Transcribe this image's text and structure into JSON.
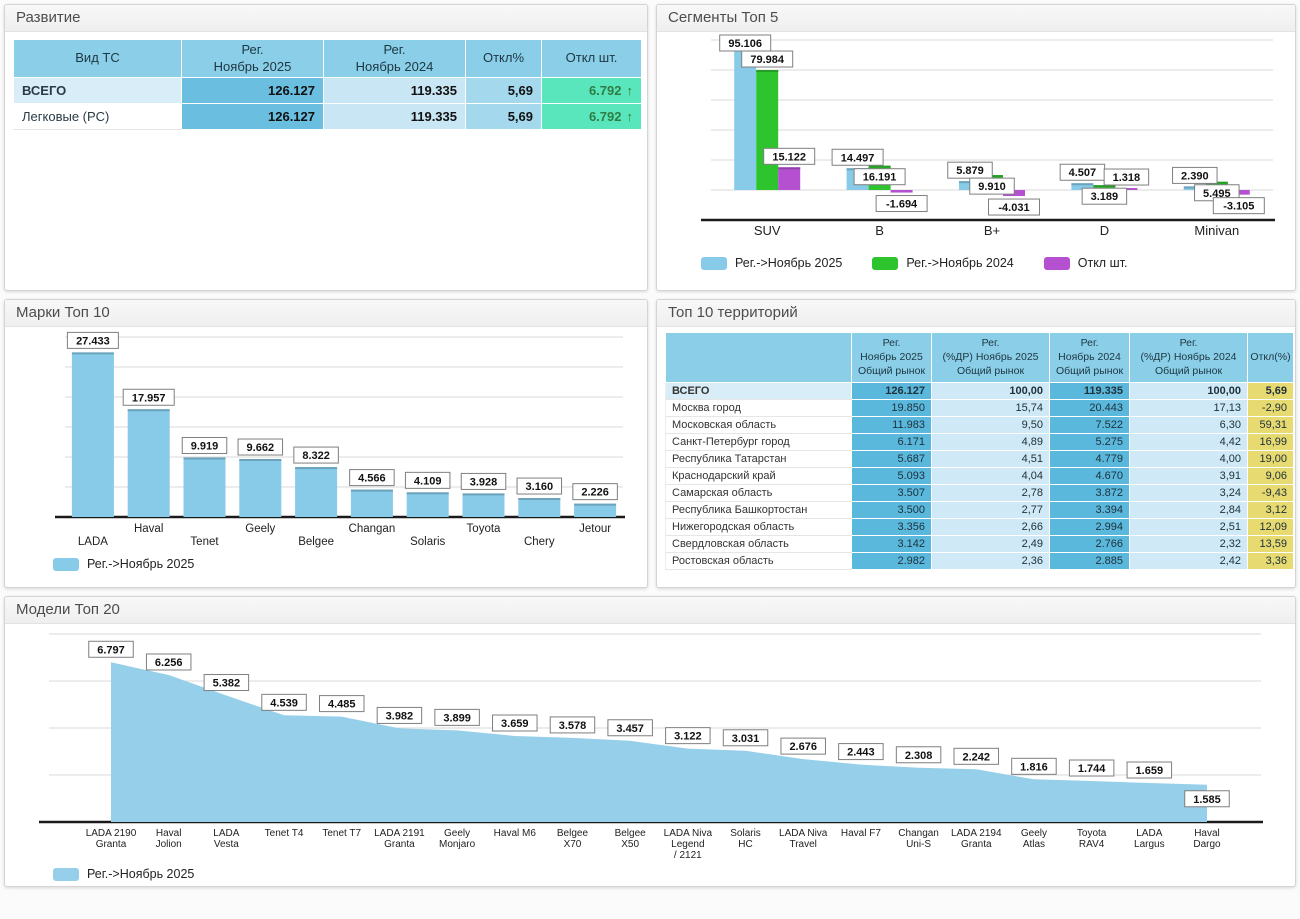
{
  "colors": {
    "blue": "#87cbe8",
    "area_blue": "#96cfe9",
    "green": "#2ec42e",
    "purple": "#b551d1",
    "grid": "#d8d8d8",
    "axis": "#1a1a1a",
    "label_box_border": "#7f7f7f",
    "header_blue": "#8bcee8",
    "cell_mid_blue": "#5bb8dd",
    "cell_light_blue": "#cfe9f6",
    "cell_yellow": "#e6da70",
    "cell_mint": "#59e6bc"
  },
  "icons": {
    "trend_up": "↑"
  },
  "panels": {
    "development": {
      "title": "Развитие"
    },
    "segments": {
      "title": "Сегменты Топ 5"
    },
    "brands": {
      "title": "Марки Топ 10"
    },
    "territories": {
      "title": "Топ 10 территорий"
    },
    "models": {
      "title": "Модели Топ 20"
    }
  },
  "chart_data": [
    {
      "id": "development",
      "type": "table",
      "columns": [
        "Вид ТС",
        "Рег.\nНоябрь 2025",
        "Рег.\nНоябрь 2024",
        "Откл%",
        "Откл шт."
      ],
      "rows": [
        {
          "cells": [
            "ВСЕГО",
            "126.127",
            "119.335",
            "5,69",
            "6.792"
          ],
          "trend": "up"
        },
        {
          "cells": [
            "Легковые (PC)",
            "126.127",
            "119.335",
            "5,69",
            "6.792"
          ],
          "trend": "up"
        }
      ]
    },
    {
      "id": "segments",
      "type": "bar",
      "title": "Сегменты Топ 5",
      "categories": [
        "SUV",
        "B",
        "B+",
        "D",
        "Minivan"
      ],
      "series": [
        {
          "name": "Рег.->Ноябрь 2025",
          "color_key": "blue",
          "values": [
            95106,
            14497,
            5879,
            4507,
            2390
          ],
          "labels": [
            "95.106",
            "14.497",
            "5.879",
            "4.507",
            "2.390"
          ]
        },
        {
          "name": "Рег.->Ноябрь 2024",
          "color_key": "green",
          "values": [
            79984,
            16191,
            9910,
            3189,
            5495
          ],
          "labels": [
            "79.984",
            "16.191",
            "9.910",
            "3.189",
            "5.495"
          ]
        },
        {
          "name": "Откл шт.",
          "color_key": "purple",
          "values": [
            15122,
            -1694,
            -4031,
            1318,
            -3105
          ],
          "labels": [
            "15.122",
            "-1.694",
            "-4.031",
            "1.318",
            "-3.105"
          ]
        }
      ],
      "ylim": [
        -20000,
        100000
      ],
      "grid_step": 20000,
      "grid": true,
      "legend_position": "bottom"
    },
    {
      "id": "brands",
      "type": "bar",
      "title": "Марки Топ 10",
      "categories": [
        "LADA",
        "Haval",
        "Tenet",
        "Geely",
        "Belgee",
        "Changan",
        "Solaris",
        "Toyota",
        "Chery",
        "Jetour"
      ],
      "series": [
        {
          "name": "Рег.->Ноябрь 2025",
          "color_key": "blue",
          "values": [
            27433,
            17957,
            9919,
            9662,
            8322,
            4566,
            4109,
            3928,
            3160,
            2226
          ],
          "labels": [
            "27.433",
            "17.957",
            "9.919",
            "9.662",
            "8.322",
            "4.566",
            "4.109",
            "3.928",
            "3.160",
            "2.226"
          ]
        }
      ],
      "ylim": [
        0,
        30000
      ],
      "grid_step": 5000,
      "grid": true,
      "legend_position": "bottom"
    },
    {
      "id": "territories",
      "type": "table",
      "columns": [
        "",
        "Рег.\nНоябрь 2025\nОбщий рынок",
        "Рег.\n(%ДР) Ноябрь 2025\nОбщий рынок",
        "Рег.\nНоябрь 2024\nОбщий рынок",
        "Рег.\n(%ДР) Ноябрь 2024\nОбщий рынок",
        "Откл(%)"
      ],
      "rows": [
        [
          "ВСЕГО",
          "126.127",
          "100,00",
          "119.335",
          "100,00",
          "5,69"
        ],
        [
          "Москва город",
          "19.850",
          "15,74",
          "20.443",
          "17,13",
          "-2,90"
        ],
        [
          "Московская область",
          "11.983",
          "9,50",
          "7.522",
          "6,30",
          "59,31"
        ],
        [
          "Санкт-Петербург город",
          "6.171",
          "4,89",
          "5.275",
          "4,42",
          "16,99"
        ],
        [
          "Республика Татарстан",
          "5.687",
          "4,51",
          "4.779",
          "4,00",
          "19,00"
        ],
        [
          "Краснодарский край",
          "5.093",
          "4,04",
          "4.670",
          "3,91",
          "9,06"
        ],
        [
          "Самарская область",
          "3.507",
          "2,78",
          "3.872",
          "3,24",
          "-9,43"
        ],
        [
          "Республика Башкортостан",
          "3.500",
          "2,77",
          "3.394",
          "2,84",
          "3,12"
        ],
        [
          "Нижегородская область",
          "3.356",
          "2,66",
          "2.994",
          "2,51",
          "12,09"
        ],
        [
          "Свердловская область",
          "3.142",
          "2,49",
          "2.766",
          "2,32",
          "13,59"
        ],
        [
          "Ростовская область",
          "2.982",
          "2,36",
          "2.885",
          "2,42",
          "3,36"
        ]
      ]
    },
    {
      "id": "models",
      "type": "area",
      "title": "Модели Топ 20",
      "categories": [
        "LADA 2190\nGranta",
        "Haval\nJolion",
        "LADA\nVesta",
        "Tenet T4",
        "Tenet T7",
        "LADA 2191\nGranta",
        "Geely\nMonjaro",
        "Haval M6",
        "Belgee\nX70",
        "Belgee\nX50",
        "LADA Niva\nLegend\n/ 2121",
        "Solaris\nHC",
        "LADA Niva\nTravel",
        "Haval F7",
        "Changan\nUni-S",
        "LADA 2194\nGranta",
        "Geely\nAtlas",
        "Toyota\nRAV4",
        "LADA\nLargus",
        "Haval\nDargo"
      ],
      "series": [
        {
          "name": "Рег.->Ноябрь 2025",
          "color_key": "area_blue",
          "values": [
            6797,
            6256,
            5382,
            4539,
            4485,
            3982,
            3899,
            3659,
            3578,
            3457,
            3122,
            3031,
            2676,
            2443,
            2308,
            2242,
            1816,
            1744,
            1659,
            1585
          ],
          "labels": [
            "6.797",
            "6.256",
            "5.382",
            "4.539",
            "4.485",
            "3.982",
            "3.899",
            "3.659",
            "3.578",
            "3.457",
            "3.122",
            "3.031",
            "2.676",
            "2.443",
            "2.308",
            "2.242",
            "1.816",
            "1.744",
            "1.659",
            "1.585"
          ]
        }
      ],
      "ylim": [
        0,
        8000
      ],
      "grid_step": 2000,
      "grid": true,
      "legend_position": "bottom"
    }
  ]
}
